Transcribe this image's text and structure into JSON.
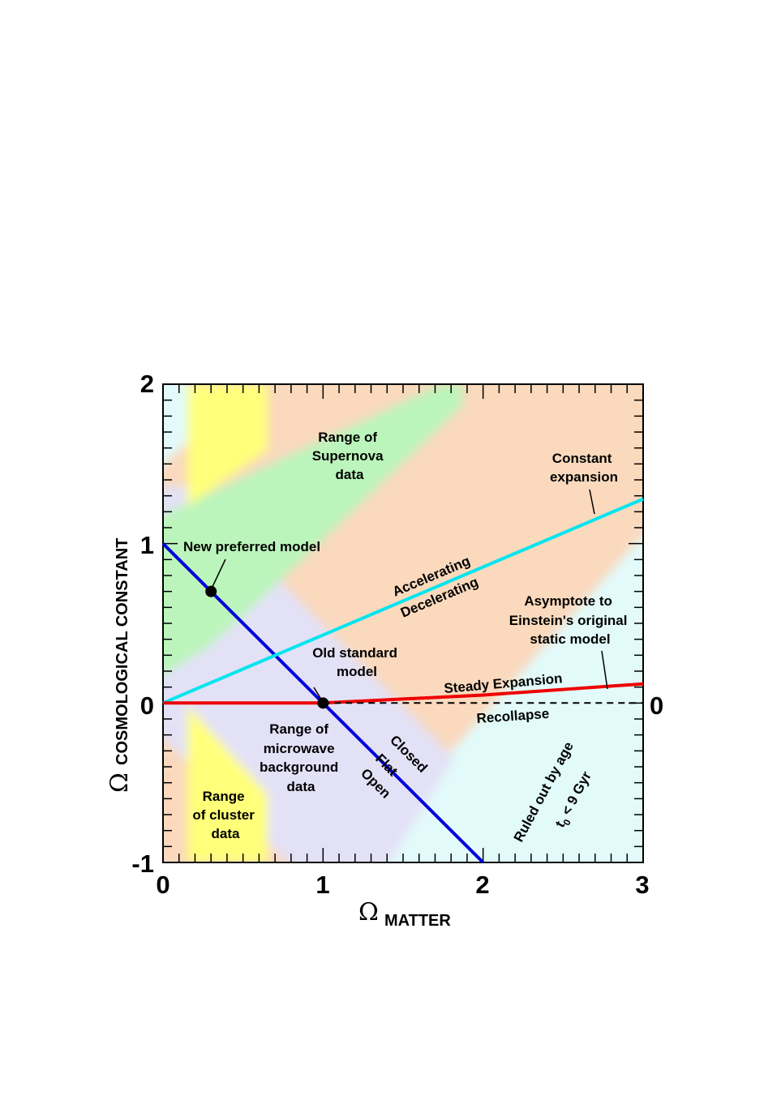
{
  "chart_data": {
    "type": "line",
    "xlabel_symbol": "Ω",
    "xlabel": "MATTER",
    "ylabel_symbol": "Ω",
    "ylabel": "COSMOLOGICAL CONSTANT",
    "xlim": [
      0,
      3
    ],
    "ylim": [
      -1,
      2
    ],
    "x_ticks": [
      "0",
      "1",
      "2",
      "3"
    ],
    "x_tick_values": [
      0,
      1,
      2,
      3
    ],
    "y_ticks": [
      "-1",
      "0",
      "1",
      "2"
    ],
    "y_tick_values": [
      -1,
      0,
      1,
      2
    ],
    "right_tick_label": "0",
    "series": [
      {
        "id": "flat",
        "color": "#0000dd",
        "x": [
          0,
          2
        ],
        "y": [
          1,
          -1
        ]
      },
      {
        "id": "constant-expansion",
        "color": "#00e5ee",
        "x": [
          0,
          3
        ],
        "y": [
          0,
          1.28
        ]
      },
      {
        "id": "steady-expansion",
        "color": "#ee0000",
        "x": [
          0,
          1,
          2,
          3
        ],
        "y": [
          0,
          0,
          0.05,
          0.12
        ]
      },
      {
        "id": "recollapse-boundary",
        "color": "#000000",
        "dashed": true,
        "x": [
          1,
          3
        ],
        "y": [
          0,
          0
        ]
      }
    ],
    "points": [
      {
        "name": "new-preferred-model",
        "x": 0.3,
        "y": 0.7
      },
      {
        "name": "old-standard-model",
        "x": 1.0,
        "y": 0.0
      }
    ],
    "regions": {
      "age_ruled_out_color": "#e2fafa",
      "cluster_color": "#ffff7a",
      "supernova_color": "#bbf5bb",
      "microwave_color": "#e3e1f6",
      "background_color": "#fad9bd"
    },
    "annotations": {
      "supernova": [
        "Range of",
        "Supernova",
        "data"
      ],
      "constant_expansion": [
        "Constant",
        "expansion"
      ],
      "new_preferred": "New preferred model",
      "accelerating": "Accelerating",
      "decelerating": "Decelerating",
      "asymptote": [
        "Asymptote to",
        "Einstein's original",
        "static model"
      ],
      "old_standard": [
        "Old standard",
        "model"
      ],
      "steady_expansion": "Steady Expansion",
      "recollapse": "Recollapse",
      "microwave": [
        "Range of",
        "microwave",
        "background",
        "data"
      ],
      "closed": "Closed",
      "flat": "Flat",
      "open": "Open",
      "cluster": [
        "Range",
        "of cluster",
        "data"
      ],
      "ruled_out": "Ruled out by age",
      "age_limit_t": "t",
      "age_limit_sub": "0",
      "age_limit_rest": " < 9 Gyr"
    }
  }
}
